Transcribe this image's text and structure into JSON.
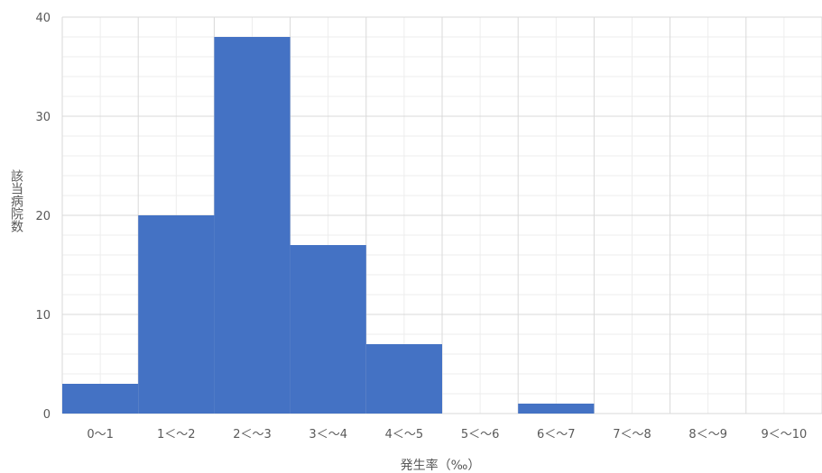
{
  "chart_data": {
    "type": "bar",
    "title": "",
    "xlabel": "発生率（‰）",
    "ylabel": "該当病院数",
    "categories": [
      "0～1",
      "1＜～2",
      "2＜～3",
      "3＜～4",
      "4＜～5",
      "5＜～6",
      "6＜～7",
      "7＜～8",
      "8＜～9",
      "9＜～10"
    ],
    "values": [
      3,
      20,
      38,
      17,
      7,
      0,
      1,
      0,
      0,
      0
    ],
    "ylim": [
      0,
      40
    ],
    "yticks": [
      0,
      10,
      20,
      30,
      40
    ],
    "grid": true,
    "minor_grid": true,
    "bar_color": "#4472C4",
    "grid_color": "#D9D9D9",
    "minor_grid_color": "#EDEDED"
  }
}
